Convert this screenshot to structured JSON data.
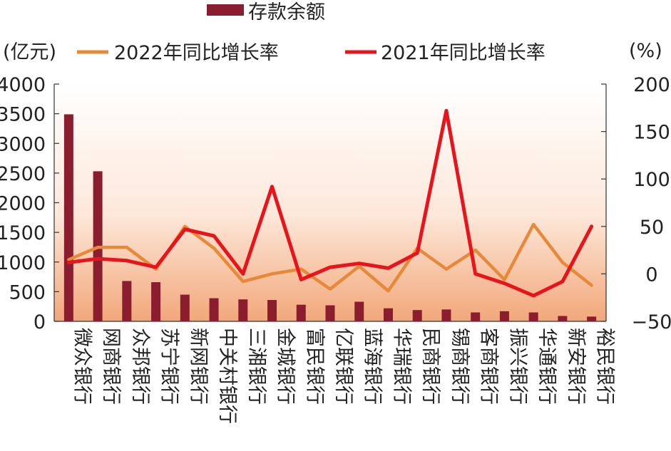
{
  "chart_data": {
    "type": "bar+line",
    "title": "",
    "categories": [
      "微众银行",
      "网商银行",
      "众邦银行",
      "苏宁银行",
      "新网银行",
      "中关村银行",
      "三湘银行",
      "金城银行",
      "富民银行",
      "亿联银行",
      "蓝海银行",
      "华瑞银行",
      "民商银行",
      "锡商银行",
      "客商银行",
      "振兴银行",
      "华通银行",
      "新安银行",
      "裕民银行"
    ],
    "left_axis": {
      "unit": "(亿元)",
      "ylim": [
        0,
        4000
      ],
      "ticks": [
        0,
        500,
        1000,
        1500,
        2000,
        2500,
        3000,
        3500,
        4000
      ]
    },
    "right_axis": {
      "unit": "(%)",
      "ylim": [
        -50,
        200
      ],
      "ticks": [
        -50,
        0,
        50,
        100,
        150,
        200
      ]
    },
    "series": [
      {
        "name": "存款余额",
        "kind": "bar",
        "axis": "left",
        "color": "#8b1e2e",
        "values": [
          3490,
          2530,
          680,
          660,
          450,
          390,
          370,
          360,
          280,
          270,
          330,
          220,
          190,
          200,
          150,
          170,
          150,
          90,
          80
        ]
      },
      {
        "name": "2022年同比增长率",
        "kind": "line",
        "axis": "right",
        "color": "#e8893a",
        "values": [
          15,
          28,
          28,
          5,
          50,
          27,
          -8,
          0,
          5,
          -16,
          8,
          -18,
          27,
          5,
          25,
          -6,
          52,
          12,
          -12
        ]
      },
      {
        "name": "2021年同比增长率",
        "kind": "line",
        "axis": "right",
        "color": "#e8141c",
        "values": [
          12,
          16,
          14,
          7,
          47,
          40,
          0,
          92,
          -6,
          7,
          11,
          6,
          22,
          172,
          0,
          -10,
          -23,
          -8,
          50
        ]
      }
    ],
    "legend": {
      "bar_label": "存款余额",
      "line_labels": [
        "2022年同比增长率",
        "2021年同比增长率"
      ],
      "position": "top"
    },
    "background_gradient": [
      "#ffffff",
      "#f2a77a"
    ]
  }
}
